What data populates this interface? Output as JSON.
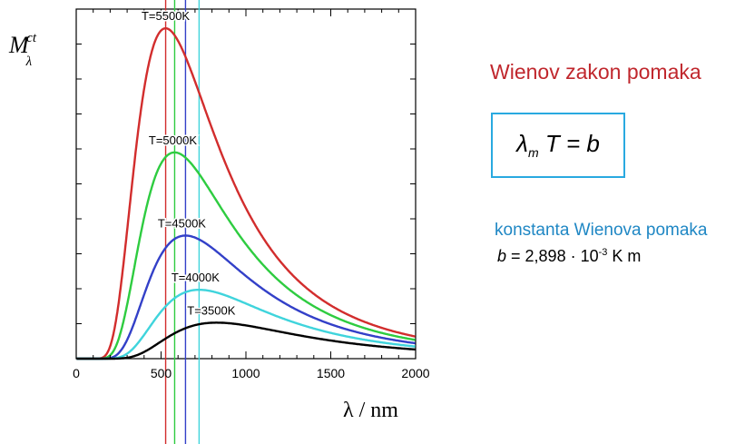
{
  "right_panel": {
    "title": "Wienov zakon pomaka",
    "formula": {
      "lambda": "λ",
      "sub": "m",
      "rest": " T = b"
    },
    "constant_title": "konstanta Wienova pomaka",
    "constant": {
      "var": "b",
      "value": " = 2,898 · 10",
      "exp": "-3",
      "unit": " K m"
    }
  },
  "chart_data": {
    "type": "line",
    "ylabel": "M",
    "ylabel_sub": "λ",
    "ylabel_sup": "ct",
    "xlabel": "λ / nm",
    "xlim": [
      0,
      2000
    ],
    "ylim": [
      0,
      1
    ],
    "x_ticks": [
      0,
      500,
      1000,
      1500,
      2000
    ],
    "series": [
      {
        "name": "T=5500K",
        "T": 5500,
        "color": "#d22d2d",
        "peak_nm": 527,
        "peak_y": 0.945
      },
      {
        "name": "T=5000K",
        "T": 5000,
        "color": "#2ecc40",
        "peak_nm": 580,
        "peak_y": 0.59
      },
      {
        "name": "T=4500K",
        "T": 4500,
        "color": "#3340c8",
        "peak_nm": 644,
        "peak_y": 0.352
      },
      {
        "name": "T=4000K",
        "T": 4000,
        "color": "#3fd4dc",
        "peak_nm": 724,
        "peak_y": 0.197
      },
      {
        "name": "T=3500K",
        "T": 3500,
        "color": "#000000",
        "peak_nm": 828,
        "peak_y": 0.103
      }
    ],
    "peak_lines": [
      {
        "x_nm": 527,
        "color": "#d22d2d"
      },
      {
        "x_nm": 580,
        "color": "#2ecc40"
      },
      {
        "x_nm": 644,
        "color": "#3340c8"
      },
      {
        "x_nm": 724,
        "color": "#3fd4dc"
      }
    ]
  }
}
